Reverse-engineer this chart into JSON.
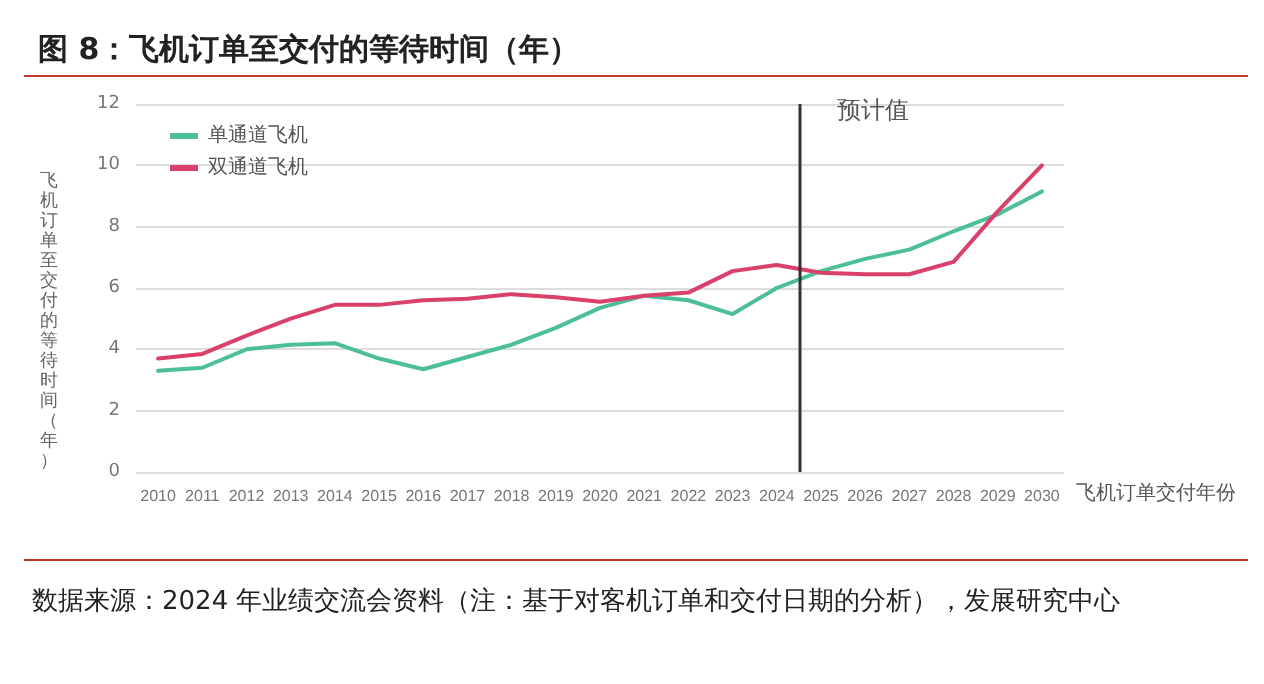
{
  "chart_data": {
    "type": "line",
    "title": "图 8：飞机订单至交付的等待时间（年）",
    "xlabel": "飞机订单交付年份",
    "ylabel": "飞机订单至交付的等待时间（年）",
    "x": [
      2010,
      2011,
      2012,
      2013,
      2014,
      2015,
      2016,
      2017,
      2018,
      2019,
      2020,
      2021,
      2022,
      2023,
      2024,
      2025,
      2026,
      2027,
      2028,
      2029,
      2030
    ],
    "xlim": [
      2009.5,
      2030.5
    ],
    "xticks": [
      2010,
      2011,
      2012,
      2013,
      2014,
      2015,
      2016,
      2017,
      2018,
      2019,
      2020,
      2021,
      2022,
      2023,
      2024,
      2025,
      2026,
      2027,
      2028,
      2029,
      2030
    ],
    "ylim": [
      0,
      12
    ],
    "yticks": [
      0,
      2,
      4,
      6,
      8,
      10,
      12
    ],
    "series": [
      {
        "name": "单通道飞机",
        "color": "#4dbf95",
        "values": [
          3.3,
          3.4,
          4.0,
          4.15,
          4.2,
          3.7,
          3.35,
          3.75,
          4.15,
          4.7,
          5.35,
          5.75,
          5.6,
          5.15,
          6.0,
          6.55,
          6.95,
          7.25,
          7.85,
          8.4,
          9.15
        ]
      },
      {
        "name": "双通道飞机",
        "color": "#d9416a",
        "values": [
          3.7,
          3.85,
          4.45,
          5.0,
          5.45,
          5.45,
          5.6,
          5.65,
          5.8,
          5.7,
          5.55,
          5.75,
          5.85,
          6.55,
          6.75,
          6.5,
          6.45,
          6.45,
          6.85,
          8.5,
          10.0
        ]
      }
    ],
    "ref_lines": [
      {
        "axis": "x",
        "value": 2024.5,
        "color": "#333333",
        "label": "预计值"
      }
    ],
    "annotations": [
      "数据来源：2024 年业绩交流会资料（注：基于对客机订单和交付日期的分析），发展研究中心"
    ],
    "grid": "y",
    "legend": "top left",
    "marker": "none",
    "line_style": "solid"
  }
}
